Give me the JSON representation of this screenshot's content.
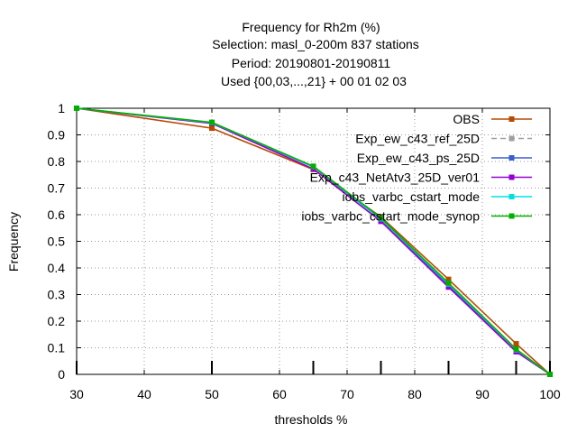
{
  "chart_data": {
    "type": "line",
    "title": [
      "Frequency  for Rh2m (%)",
      "Selection: masl_0-200m    837 stations",
      "Period: 20190801-20190811",
      "Used {00,03,...,21} + 00 01 02 03"
    ],
    "xlabel": "thresholds %",
    "ylabel": "Frequency",
    "xlim": [
      30,
      100
    ],
    "ylim": [
      0,
      1
    ],
    "xticks": [
      30,
      40,
      50,
      60,
      70,
      80,
      90,
      100
    ],
    "yticks": [
      0,
      0.1,
      0.2,
      0.3,
      0.4,
      0.5,
      0.6,
      0.7,
      0.8,
      0.9,
      1
    ],
    "grid": true,
    "legend_position": "top-right",
    "threshold_marks": [
      30,
      50,
      65,
      75,
      85,
      95,
      100
    ],
    "series": [
      {
        "name": "OBS",
        "color": "#b84a00",
        "dash": "solid",
        "marker": "square",
        "x": [
          30,
          50,
          65,
          75,
          85,
          95,
          100
        ],
        "y": [
          1.0,
          0.925,
          0.77,
          0.592,
          0.357,
          0.115,
          0.0
        ]
      },
      {
        "name": "Exp_ew_c43_ref_25D",
        "color": "#a0a0a0",
        "dash": "dashed",
        "marker": "square",
        "x": [
          30,
          50,
          65,
          75,
          85,
          95,
          100
        ],
        "y": [
          1.0,
          0.945,
          0.78,
          0.583,
          0.335,
          0.09,
          0.0
        ]
      },
      {
        "name": "Exp_ew_c43_ps_25D",
        "color": "#3a5fcd",
        "dash": "solid",
        "marker": "square",
        "x": [
          30,
          50,
          65,
          75,
          85,
          95,
          100
        ],
        "y": [
          1.0,
          0.945,
          0.78,
          0.583,
          0.335,
          0.09,
          0.0
        ]
      },
      {
        "name": "Exp_c43_NetAtv3_25D_ver01",
        "color": "#9400d3",
        "dash": "solid",
        "marker": "square",
        "x": [
          30,
          50,
          65,
          75,
          85,
          95,
          100
        ],
        "y": [
          1.0,
          0.943,
          0.772,
          0.575,
          0.328,
          0.085,
          0.0
        ]
      },
      {
        "name": "iobs_varbc_cstart_mode",
        "color": "#00e0e0",
        "dash": "solid",
        "marker": "square",
        "x": [
          30,
          50,
          65,
          75,
          85,
          95,
          100
        ],
        "y": [
          1.0,
          0.946,
          0.781,
          0.585,
          0.34,
          0.093,
          0.0
        ]
      },
      {
        "name": "iobs_varbc_cstart_mode_synop",
        "color": "#00b000",
        "dash": "solid",
        "marker": "square",
        "x": [
          30,
          50,
          65,
          75,
          85,
          95,
          100
        ],
        "y": [
          1.0,
          0.947,
          0.782,
          0.588,
          0.343,
          0.095,
          0.0
        ]
      }
    ]
  }
}
